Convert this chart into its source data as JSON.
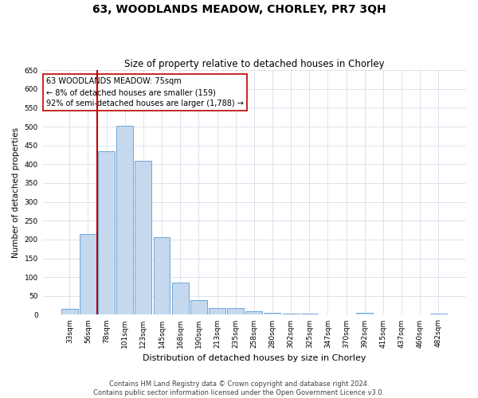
{
  "title": "63, WOODLANDS MEADOW, CHORLEY, PR7 3QH",
  "subtitle": "Size of property relative to detached houses in Chorley",
  "xlabel": "Distribution of detached houses by size in Chorley",
  "ylabel": "Number of detached properties",
  "categories": [
    "33sqm",
    "56sqm",
    "78sqm",
    "101sqm",
    "123sqm",
    "145sqm",
    "168sqm",
    "190sqm",
    "213sqm",
    "235sqm",
    "258sqm",
    "280sqm",
    "302sqm",
    "325sqm",
    "347sqm",
    "370sqm",
    "392sqm",
    "415sqm",
    "437sqm",
    "460sqm",
    "482sqm"
  ],
  "values": [
    15,
    215,
    435,
    503,
    410,
    207,
    85,
    38,
    18,
    18,
    10,
    5,
    2,
    2,
    1,
    1,
    5,
    1,
    0,
    1,
    3
  ],
  "bar_color": "#c5d8ed",
  "bar_edge_color": "#5b9bd5",
  "vline_color": "#c00000",
  "vline_x": 1.5,
  "annotation_text_line1": "63 WOODLANDS MEADOW: 75sqm",
  "annotation_text_line2": "← 8% of detached houses are smaller (159)",
  "annotation_text_line3": "92% of semi-detached houses are larger (1,788) →",
  "annotation_box_color": "#ffffff",
  "annotation_edge_color": "#c00000",
  "ylim": [
    0,
    650
  ],
  "yticks": [
    0,
    50,
    100,
    150,
    200,
    250,
    300,
    350,
    400,
    450,
    500,
    550,
    600,
    650
  ],
  "background_color": "#ffffff",
  "grid_color": "#d0d8e8",
  "footer_line1": "Contains HM Land Registry data © Crown copyright and database right 2024.",
  "footer_line2": "Contains public sector information licensed under the Open Government Licence v3.0.",
  "title_fontsize": 10,
  "subtitle_fontsize": 8.5,
  "xlabel_fontsize": 8,
  "ylabel_fontsize": 7.5,
  "tick_fontsize": 6.5,
  "annotation_fontsize": 7,
  "footer_fontsize": 6
}
